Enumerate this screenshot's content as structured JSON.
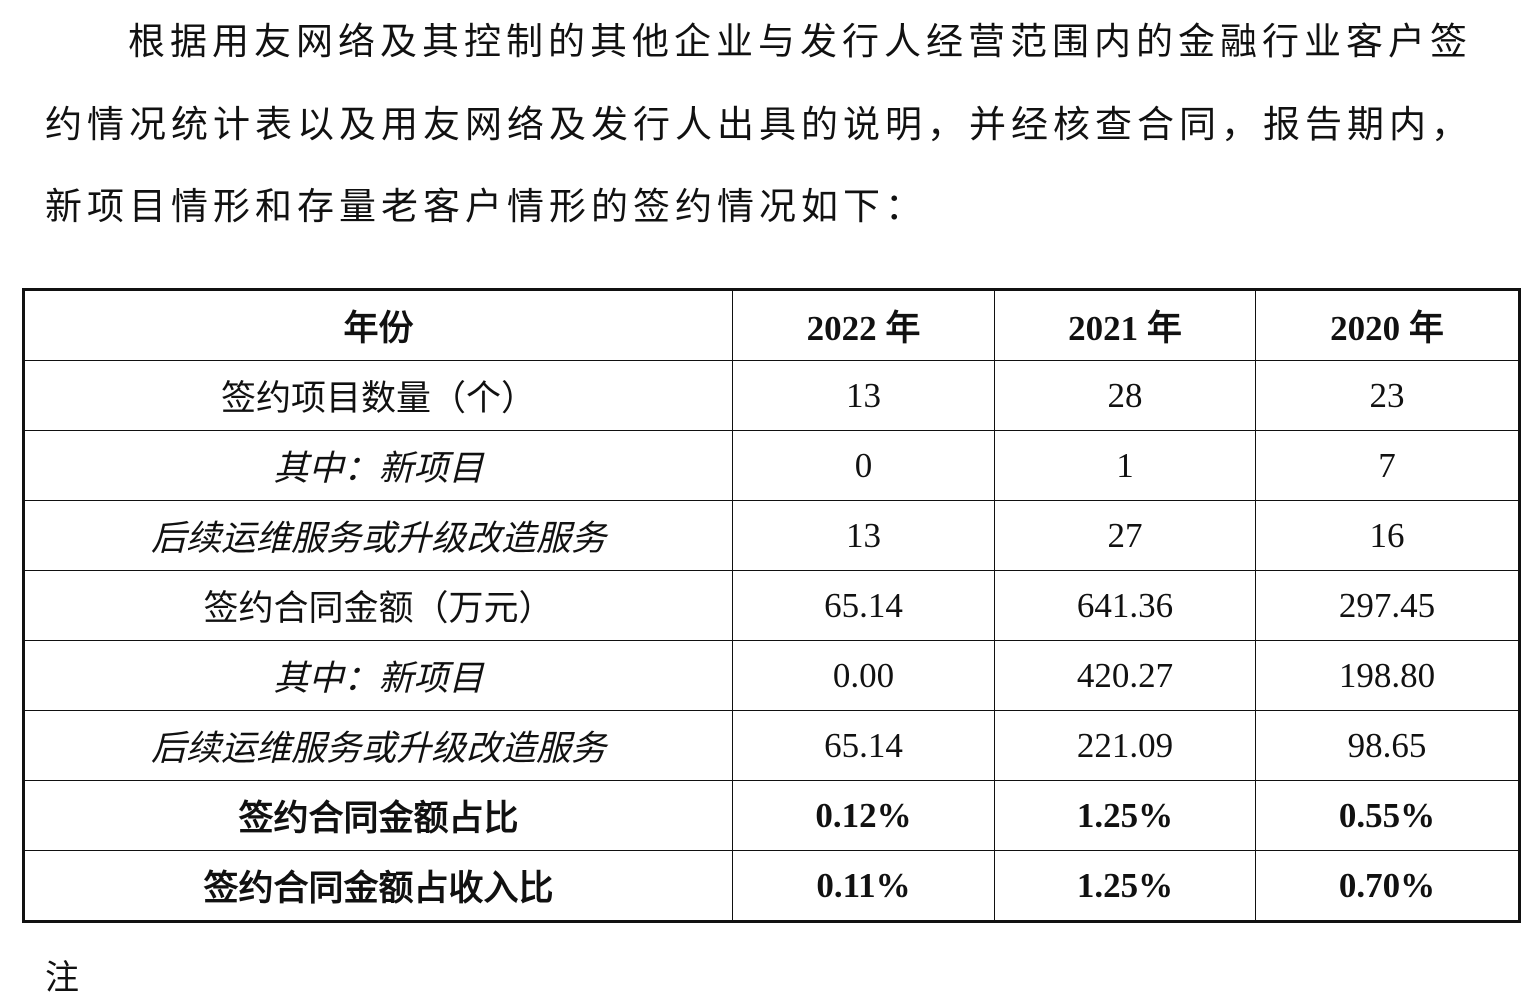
{
  "paragraph": {
    "lines": [
      "根据用友网络及其控制的其他企业与发行人经营范围内的金融行业客户签",
      "约情况统计表以及用友网络及发行人出具的说明，并经核查合同，报告期内，",
      "新项目情形和存量老客户情形的签约情况如下："
    ]
  },
  "table": {
    "header": [
      "年份",
      "2022 年",
      "2021 年",
      "2020 年"
    ],
    "rows": [
      [
        "签约项目数量（个）",
        "13",
        "28",
        "23"
      ],
      [
        "其中：新项目",
        "0",
        "1",
        "7"
      ],
      [
        "后续运维服务或升级改造服务",
        "13",
        "27",
        "16"
      ],
      [
        "签约合同金额（万元）",
        "65.14",
        "641.36",
        "297.45"
      ],
      [
        "其中：新项目",
        "0.00",
        "420.27",
        "198.80"
      ],
      [
        "后续运维服务或升级改造服务",
        "65.14",
        "221.09",
        "98.65"
      ],
      [
        "签约合同金额占比",
        "0.12%",
        "1.25%",
        "0.55%"
      ],
      [
        "签约合同金额占收入比",
        "0.11%",
        "1.25%",
        "0.70%"
      ]
    ]
  },
  "note": "注"
}
